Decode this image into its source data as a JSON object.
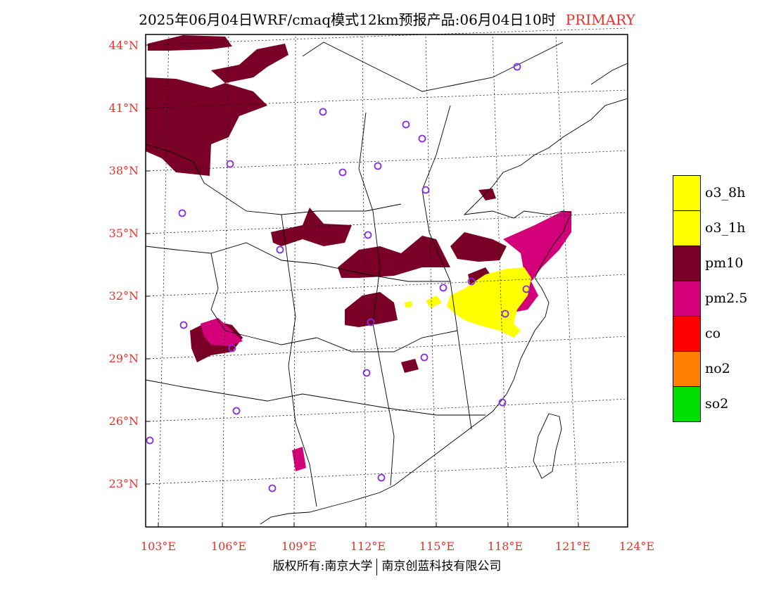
{
  "title": {
    "main": "2025年06月04日WRF/cmaq模式12km预报产品:06月04日10时",
    "tag": "PRIMARY"
  },
  "axes": {
    "lat_labels": [
      "44°N",
      "41°N",
      "38°N",
      "35°N",
      "32°N",
      "29°N",
      "26°N",
      "23°N"
    ],
    "lon_labels": [
      "103°E",
      "106°E",
      "109°E",
      "112°E",
      "115°E",
      "118°E",
      "121°E",
      "124°E"
    ]
  },
  "legend": [
    {
      "label": "o3_8h",
      "color": "#ffff00"
    },
    {
      "label": "o3_1h",
      "color": "#ffff00"
    },
    {
      "label": "pm10",
      "color": "#7a0028"
    },
    {
      "label": "pm2.5",
      "color": "#d3007a"
    },
    {
      "label": "co",
      "color": "#ff0000"
    },
    {
      "label": "no2",
      "color": "#ff8000"
    },
    {
      "label": "so2",
      "color": "#00e000"
    }
  ],
  "colors": {
    "pm10": "#7a0028",
    "pm25": "#d3007a",
    "o3": "#ffff00",
    "station_marker": "#8a2be2",
    "tick_labels": "#e8302a"
  },
  "footer": {
    "left": "版权所有:南京大学",
    "right": "南京创蓝科技有限公司"
  }
}
